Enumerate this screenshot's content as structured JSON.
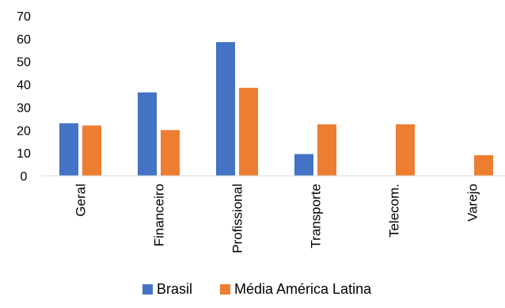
{
  "chart_data": {
    "type": "bar",
    "title": "",
    "xlabel": "",
    "ylabel": "",
    "ylim": [
      0,
      70
    ],
    "yticks": [
      0,
      10,
      20,
      30,
      40,
      50,
      60,
      70
    ],
    "grid": false,
    "legend_position": "bottom",
    "categories": [
      "Geral",
      "Financeiro",
      "Profissional",
      "Transporte",
      "Telecom.",
      "Varejo"
    ],
    "series": [
      {
        "name": "Brasil",
        "color": "#4472C4",
        "values": [
          23,
          36.5,
          58.5,
          9.5,
          null,
          null
        ]
      },
      {
        "name": "Média América Latina",
        "color": "#ED7D31",
        "values": [
          22,
          20,
          38.5,
          22.5,
          22.5,
          9
        ]
      }
    ]
  }
}
